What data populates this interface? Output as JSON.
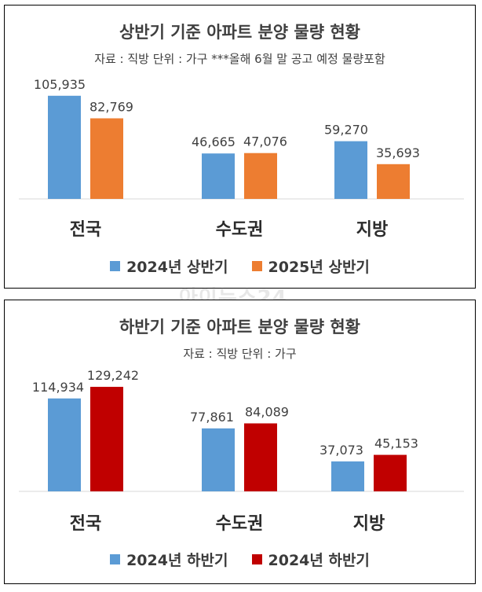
{
  "watermark": "아이뉴스24",
  "chart_data": [
    {
      "type": "bar",
      "title": "상반기 기준 아파트 분양 물량 현황",
      "subtitle": "자료 : 직방   단위 : 가구   ***올해 6월 말 공고 예정 물량포함",
      "categories": [
        "전국",
        "수도권",
        "지방"
      ],
      "series": [
        {
          "name": "2024년 상반기",
          "values": [
            105935,
            46665,
            59270
          ],
          "labels": [
            "105,935",
            "46,665",
            "59,270"
          ],
          "color": "#5b9bd5"
        },
        {
          "name": "2025년 상반기",
          "values": [
            82769,
            47076,
            35693
          ],
          "labels": [
            "82,769",
            "47,076",
            "35,693"
          ],
          "color": "#ed7d31"
        }
      ],
      "ylim": [
        0,
        130000
      ],
      "grid": false,
      "legend": "bottom"
    },
    {
      "type": "bar",
      "title": "하반기 기준 아파트 분양 물량 현황",
      "subtitle": "자료 : 직방   단위 : 가구",
      "categories": [
        "전국",
        "수도권",
        "지방"
      ],
      "series": [
        {
          "name": "2024년 하반기",
          "values": [
            114934,
            77861,
            37073
          ],
          "labels": [
            "114,934",
            "77,861",
            "37,073"
          ],
          "color": "#5b9bd5"
        },
        {
          "name": "2024년 하반기",
          "values": [
            129242,
            84089,
            45153
          ],
          "labels": [
            "129,242",
            "84,089",
            "45,153"
          ],
          "color": "#c00000"
        }
      ],
      "ylim": [
        0,
        140000
      ],
      "grid": false,
      "legend": "bottom"
    }
  ]
}
